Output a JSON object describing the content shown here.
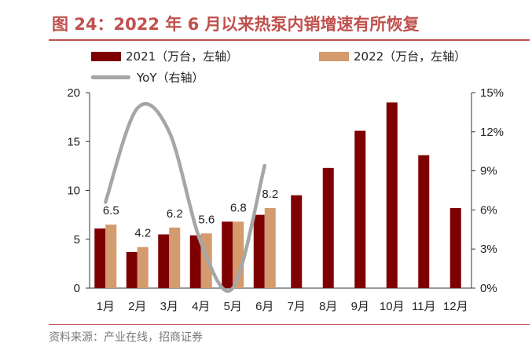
{
  "header": {
    "title": "图 24：2022 年 6 月以来热泵内销增速有所恢复"
  },
  "footer": {
    "source": "资料来源：产业在线，招商证券"
  },
  "colors": {
    "series_2021": "#7f0000",
    "series_2022": "#d39b6e",
    "series_yoy": "#a6a6a6",
    "accent": "#c0504d"
  },
  "chart_data": {
    "type": "bar",
    "categories": [
      "1月",
      "2月",
      "3月",
      "4月",
      "5月",
      "6月",
      "7月",
      "8月",
      "9月",
      "10月",
      "11月",
      "12月"
    ],
    "series": [
      {
        "name": "2021（万台，左轴）",
        "axis": "left",
        "type": "bar",
        "values": [
          6.1,
          3.7,
          5.5,
          5.4,
          6.8,
          7.5,
          9.5,
          12.3,
          16.1,
          19.0,
          13.6,
          8.2
        ]
      },
      {
        "name": "2022（万台，左轴）",
        "axis": "left",
        "type": "bar",
        "values": [
          6.5,
          4.2,
          6.2,
          5.6,
          6.8,
          8.2,
          null,
          null,
          null,
          null,
          null,
          null
        ]
      },
      {
        "name": "YoY（右轴）",
        "axis": "right",
        "type": "line",
        "values": [
          0.066,
          0.138,
          0.12,
          0.035,
          0.0,
          0.094,
          null,
          null,
          null,
          null,
          null,
          null
        ]
      }
    ],
    "data_labels": [
      "6.5",
      "4.2",
      "6.2",
      "5.6",
      "6.8",
      "8.2"
    ],
    "y_left": {
      "min": 0,
      "max": 20,
      "ticks": [
        "0",
        "5",
        "10",
        "15",
        "20"
      ]
    },
    "y_right": {
      "min": 0,
      "max": 0.15,
      "ticks": [
        "0%",
        "3%",
        "6%",
        "9%",
        "12%",
        "15%"
      ]
    },
    "legend_position": "top",
    "grid": false
  }
}
